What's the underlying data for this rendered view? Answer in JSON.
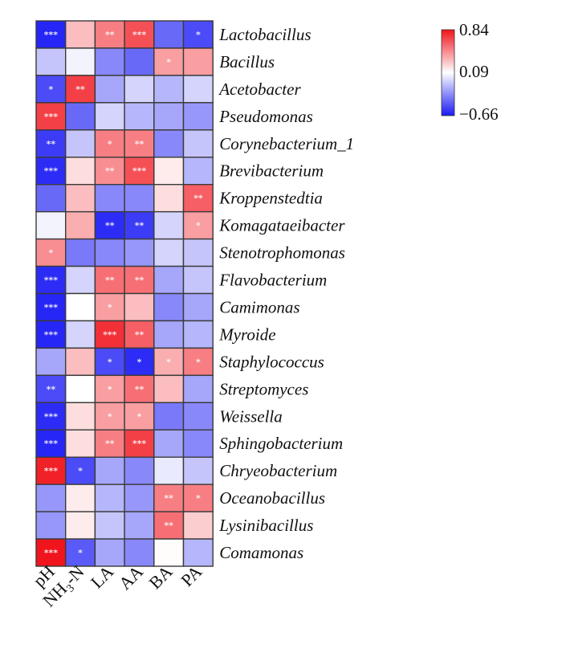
{
  "chart_data": {
    "type": "heatmap",
    "title": "",
    "rows": [
      "Lactobacillus",
      "Bacillus",
      "Acetobacter",
      "Pseudomonas",
      "Corynebacterium_1",
      "Brevibacterium",
      "Kroppenstedtia",
      "Komagataeibacter",
      "Stenotrophomonas",
      "Flavobacterium",
      "Camimonas",
      "Myroide",
      "Staphylococcus",
      "Streptomyces",
      "Weissella",
      "Sphingobacterium",
      "Chryeobacterium",
      "Oceanobacillus",
      "Lysinibacillus",
      "Comamonas"
    ],
    "columns": [
      "pH",
      "NH3-N",
      "LA",
      "AA",
      "BA",
      "PA"
    ],
    "values": [
      [
        -0.62,
        0.3,
        0.5,
        0.65,
        -0.4,
        -0.5
      ],
      [
        -0.1,
        0.05,
        -0.3,
        -0.4,
        0.4,
        0.4
      ],
      [
        -0.5,
        0.7,
        -0.2,
        -0.05,
        -0.15,
        -0.05
      ],
      [
        0.7,
        -0.4,
        -0.05,
        -0.15,
        -0.2,
        -0.25
      ],
      [
        -0.55,
        -0.1,
        0.5,
        0.5,
        -0.3,
        -0.1
      ],
      [
        -0.6,
        0.2,
        0.45,
        0.65,
        0.15,
        -0.15
      ],
      [
        -0.4,
        0.3,
        -0.3,
        -0.3,
        0.2,
        0.6
      ],
      [
        0.05,
        0.35,
        -0.6,
        -0.55,
        -0.05,
        0.4
      ],
      [
        0.45,
        -0.35,
        -0.3,
        -0.25,
        -0.05,
        -0.1
      ],
      [
        -0.6,
        -0.05,
        0.55,
        0.55,
        -0.2,
        -0.1
      ],
      [
        -0.62,
        0.09,
        0.4,
        0.3,
        -0.3,
        -0.2
      ],
      [
        -0.62,
        -0.05,
        0.75,
        0.6,
        -0.2,
        -0.15
      ],
      [
        -0.2,
        0.3,
        -0.5,
        -0.6,
        0.35,
        0.5
      ],
      [
        -0.5,
        0.09,
        0.4,
        0.55,
        0.3,
        -0.2
      ],
      [
        -0.6,
        0.2,
        0.4,
        0.4,
        -0.35,
        -0.3
      ],
      [
        -0.62,
        0.2,
        0.5,
        0.7,
        -0.2,
        -0.3
      ],
      [
        0.8,
        -0.5,
        -0.2,
        -0.3,
        0.02,
        -0.1
      ],
      [
        -0.25,
        0.15,
        -0.15,
        -0.25,
        0.5,
        0.5
      ],
      [
        -0.25,
        0.15,
        -0.1,
        -0.2,
        0.55,
        0.25
      ],
      [
        0.84,
        -0.45,
        -0.2,
        -0.3,
        0.1,
        -0.15
      ]
    ],
    "significance": [
      [
        "***",
        "",
        "**",
        "***",
        "",
        "*"
      ],
      [
        "",
        "",
        "",
        "",
        "*",
        ""
      ],
      [
        "*",
        "**",
        "",
        "",
        "",
        ""
      ],
      [
        "***",
        "",
        "",
        "",
        "",
        ""
      ],
      [
        "**",
        "",
        "*",
        "**",
        "",
        ""
      ],
      [
        "***",
        "",
        "**",
        "***",
        "",
        ""
      ],
      [
        "",
        "",
        "",
        "",
        "",
        "**"
      ],
      [
        "",
        "",
        "**",
        "**",
        "",
        "*"
      ],
      [
        "*",
        "",
        "",
        "",
        "",
        ""
      ],
      [
        "***",
        "",
        "**",
        "**",
        "",
        ""
      ],
      [
        "***",
        "",
        "*",
        "",
        "",
        ""
      ],
      [
        "***",
        "",
        "***",
        "**",
        "",
        ""
      ],
      [
        "",
        "",
        "*",
        "*",
        "*",
        "*"
      ],
      [
        "**",
        "",
        "*",
        "**",
        "",
        ""
      ],
      [
        "***",
        "",
        "*",
        "*",
        "",
        ""
      ],
      [
        "***",
        "",
        "**",
        "***",
        "",
        ""
      ],
      [
        "***",
        "*",
        "",
        "",
        "",
        ""
      ],
      [
        "",
        "",
        "",
        "",
        "**",
        "*"
      ],
      [
        "",
        "",
        "",
        "",
        "**",
        ""
      ],
      [
        "***",
        "*",
        "",
        "",
        "",
        ""
      ]
    ],
    "colorbar": {
      "min": -0.66,
      "mid": 0.09,
      "max": 0.84,
      "tick_labels": [
        "0.84",
        "0.09",
        "−0.66"
      ],
      "colors": {
        "low": "#1a1af5",
        "mid": "#ffffff",
        "high": "#f0141c"
      }
    }
  }
}
